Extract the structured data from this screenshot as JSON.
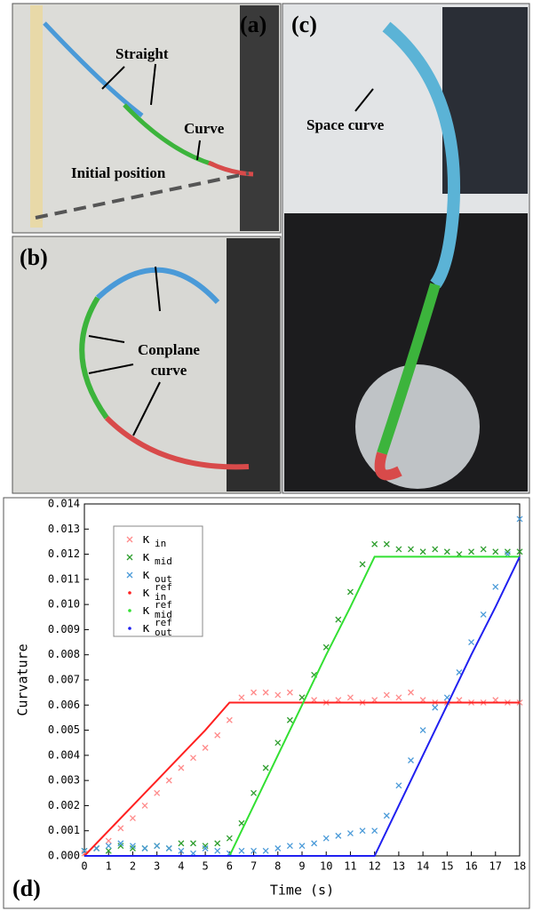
{
  "photos": [
    {
      "label": "(a)",
      "annotations": [
        "Straight",
        "Curve",
        "Initial position"
      ]
    },
    {
      "label": "(b)",
      "annotations": [
        "Conplane",
        "curve"
      ]
    },
    {
      "label": "(c)",
      "annotations": [
        "Space curve"
      ]
    }
  ],
  "chart_data": {
    "type": "scatter-line",
    "panel_label": "(d)",
    "xlabel": "Time (s)",
    "ylabel": "Curvature",
    "xlim": [
      0,
      18
    ],
    "xticks": [
      0,
      1,
      2,
      3,
      4,
      5,
      6,
      7,
      8,
      9,
      10,
      11,
      12,
      13,
      14,
      15,
      16,
      17,
      18
    ],
    "ylim": [
      0,
      0.014
    ],
    "yticks": [
      {
        "value": 0,
        "label": "0.000"
      },
      {
        "value": 0.001,
        "label": "0.001"
      },
      {
        "value": 0.002,
        "label": "0.002"
      },
      {
        "value": 0.003,
        "label": "0.003"
      },
      {
        "value": 0.004,
        "label": "0.004"
      },
      {
        "value": 0.005,
        "label": "0.005"
      },
      {
        "value": 0.006,
        "label": "0.006"
      },
      {
        "value": 0.007,
        "label": "0.007"
      },
      {
        "value": 0.008,
        "label": "0.008"
      },
      {
        "value": 0.009,
        "label": "0.009"
      },
      {
        "value": 0.01,
        "label": "0.010"
      },
      {
        "value": 0.011,
        "label": "0.011"
      },
      {
        "value": 0.012,
        "label": "0.012"
      },
      {
        "value": 0.013,
        "label": "0.013"
      },
      {
        "value": 0.014,
        "label": "0.014"
      }
    ],
    "legend": "upper left",
    "series": [
      {
        "name": "κ",
        "subscript": "in",
        "style": "cross",
        "color": "#ff8a8a",
        "x": [
          0,
          0.5,
          1,
          1.5,
          2,
          2.5,
          3,
          3.5,
          4,
          4.5,
          5,
          5.5,
          6,
          6.5,
          7,
          7.5,
          8,
          8.5,
          9,
          9.5,
          10,
          10.5,
          11,
          11.5,
          12,
          12.5,
          13,
          13.5,
          14,
          14.5,
          15,
          15.5,
          16,
          16.5,
          17,
          17.5,
          18
        ],
        "values": [
          0.0001,
          0.0003,
          0.0006,
          0.0011,
          0.0015,
          0.002,
          0.0025,
          0.003,
          0.0035,
          0.0039,
          0.0043,
          0.0048,
          0.0054,
          0.0063,
          0.0065,
          0.0065,
          0.0064,
          0.0065,
          0.0063,
          0.0062,
          0.0061,
          0.0062,
          0.0063,
          0.0061,
          0.0062,
          0.0064,
          0.0063,
          0.0065,
          0.0062,
          0.0061,
          0.0061,
          0.0062,
          0.0061,
          0.0061,
          0.0062,
          0.0061,
          0.0061
        ]
      },
      {
        "name": "κ",
        "subscript": "mid",
        "style": "cross",
        "color": "#2e9e2e",
        "x": [
          0,
          0.5,
          1,
          1.5,
          2,
          2.5,
          3,
          3.5,
          4,
          4.5,
          5,
          5.5,
          6,
          6.5,
          7,
          7.5,
          8,
          8.5,
          9,
          9.5,
          10,
          10.5,
          11,
          11.5,
          12,
          12.5,
          13,
          13.5,
          14,
          14.5,
          15,
          15.5,
          16,
          16.5,
          17,
          17.5,
          18
        ],
        "values": [
          0.0002,
          0.0003,
          0.0002,
          0.0004,
          0.0003,
          0.0003,
          0.0004,
          0.0003,
          0.0005,
          0.0005,
          0.0004,
          0.0005,
          0.0007,
          0.0013,
          0.0025,
          0.0035,
          0.0045,
          0.0054,
          0.0063,
          0.0072,
          0.0083,
          0.0094,
          0.0105,
          0.0116,
          0.0124,
          0.0124,
          0.0122,
          0.0122,
          0.0121,
          0.0122,
          0.0121,
          0.012,
          0.0121,
          0.0122,
          0.0121,
          0.0121,
          0.0121
        ]
      },
      {
        "name": "κ",
        "subscript": "out",
        "style": "cross",
        "color": "#4a9ad8",
        "x": [
          0,
          0.5,
          1,
          1.5,
          2,
          2.5,
          3,
          3.5,
          4,
          4.5,
          5,
          5.5,
          6,
          6.5,
          7,
          7.5,
          8,
          8.5,
          9,
          9.5,
          10,
          10.5,
          11,
          11.5,
          12,
          12.5,
          13,
          13.5,
          14,
          14.5,
          15,
          15.5,
          16,
          16.5,
          17,
          17.5,
          18
        ],
        "values": [
          0.0002,
          0.0003,
          0.0004,
          0.0005,
          0.0004,
          0.0003,
          0.0004,
          0.0003,
          0.0002,
          0.0001,
          0.0003,
          0.0002,
          0.0001,
          0.0002,
          0.0002,
          0.0002,
          0.0003,
          0.0004,
          0.0004,
          0.0005,
          0.0007,
          0.0008,
          0.0009,
          0.001,
          0.001,
          0.0016,
          0.0028,
          0.0038,
          0.005,
          0.0059,
          0.0063,
          0.0073,
          0.0085,
          0.0096,
          0.0107,
          0.012,
          0.0134
        ]
      },
      {
        "name": "κ",
        "superscript": "ref",
        "subscript": "in",
        "style": "dot",
        "color": "#ff2020",
        "x": [
          0,
          1,
          2,
          3,
          4,
          5,
          6,
          7,
          8,
          9,
          10,
          11,
          12,
          13,
          14,
          15,
          16,
          17,
          18
        ],
        "values": [
          0,
          0.001,
          0.002,
          0.003,
          0.004,
          0.005,
          0.0061,
          0.0061,
          0.0061,
          0.0061,
          0.0061,
          0.0061,
          0.0061,
          0.0061,
          0.0061,
          0.0061,
          0.0061,
          0.0061,
          0.0061
        ]
      },
      {
        "name": "κ",
        "superscript": "ref",
        "subscript": "mid",
        "style": "dot",
        "color": "#33e033",
        "x": [
          0,
          1,
          2,
          3,
          4,
          5,
          6,
          7,
          8,
          9,
          10,
          11,
          12,
          13,
          14,
          15,
          16,
          17,
          18
        ],
        "values": [
          0,
          0,
          0,
          0,
          0,
          0,
          0,
          0.002,
          0.004,
          0.006,
          0.008,
          0.0099,
          0.0119,
          0.0119,
          0.0119,
          0.0119,
          0.0119,
          0.0119,
          0.0119
        ]
      },
      {
        "name": "κ",
        "superscript": "ref",
        "subscript": "out",
        "style": "dot",
        "color": "#2020f0",
        "x": [
          0,
          1,
          2,
          3,
          4,
          5,
          6,
          7,
          8,
          9,
          10,
          11,
          12,
          13,
          14,
          15,
          16,
          17,
          18
        ],
        "values": [
          0,
          0,
          0,
          0,
          0,
          0,
          0,
          0,
          0,
          0,
          0,
          0,
          0,
          0.002,
          0.004,
          0.006,
          0.008,
          0.0099,
          0.0119
        ]
      }
    ]
  }
}
